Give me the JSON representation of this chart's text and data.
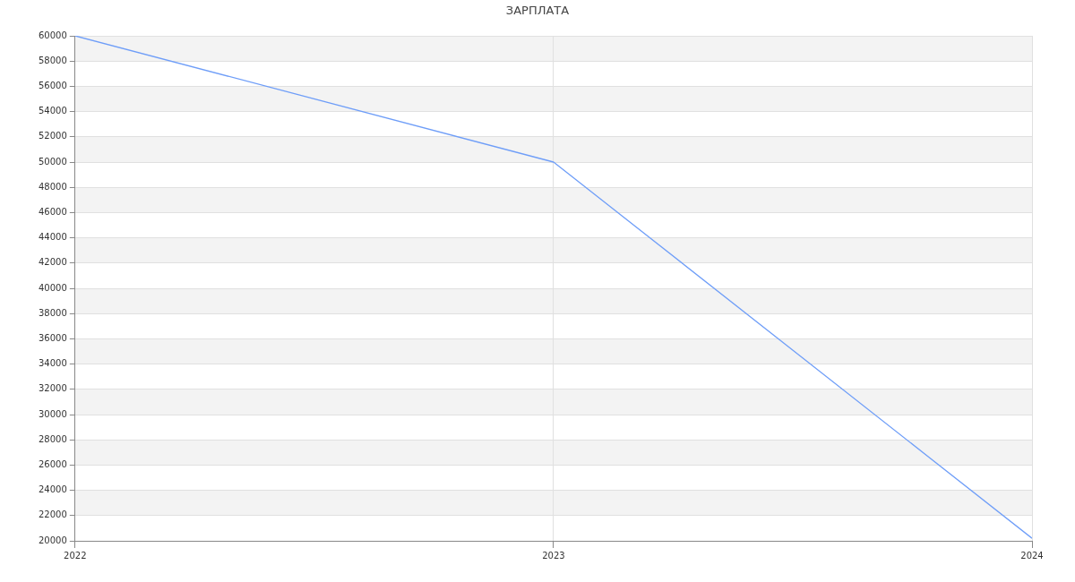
{
  "chart_data": {
    "type": "line",
    "title": "ЗАРПЛАТА",
    "x": [
      2022,
      2023,
      2024
    ],
    "series": [
      {
        "color": "#6f9ef8",
        "values": [
          60000,
          50000,
          20200
        ]
      }
    ],
    "xlim": [
      2022,
      2024
    ],
    "xticks": [
      2022,
      2023,
      2024
    ],
    "ylim": [
      20000,
      60000
    ],
    "yticks": [
      20000,
      22000,
      24000,
      26000,
      28000,
      30000,
      32000,
      34000,
      36000,
      38000,
      40000,
      42000,
      44000,
      46000,
      48000,
      50000,
      52000,
      54000,
      56000,
      58000,
      60000
    ],
    "grid": true,
    "legend": false,
    "marker": "none",
    "line_style": "solid"
  }
}
